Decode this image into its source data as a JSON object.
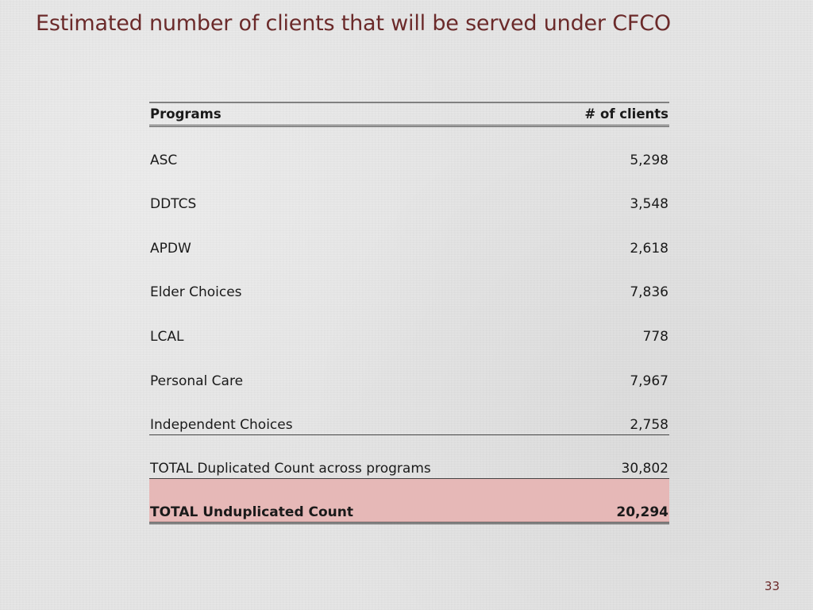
{
  "slide": {
    "title": "Estimated number of clients that will be served under CFCO",
    "page_number": "33"
  },
  "table": {
    "headers": [
      "Programs",
      "# of clients"
    ],
    "rows": [
      {
        "program": "ASC",
        "clients": "5,298"
      },
      {
        "program": "DDTCS",
        "clients": "3,548"
      },
      {
        "program": "APDW",
        "clients": "2,618"
      },
      {
        "program": "Elder Choices",
        "clients": "7,836"
      },
      {
        "program": "LCAL",
        "clients": "778"
      },
      {
        "program": "Personal Care",
        "clients": "7,967"
      },
      {
        "program": "Independent Choices",
        "clients": "2,758"
      }
    ],
    "duplicated_total": {
      "label": "TOTAL Duplicated Count across programs",
      "value": "30,802"
    },
    "unduplicated_total": {
      "label": "TOTAL Unduplicated Count",
      "value": "20,294"
    }
  },
  "colors": {
    "title": "#6b2a2a",
    "total_row_highlight": "#e6b8b7"
  }
}
